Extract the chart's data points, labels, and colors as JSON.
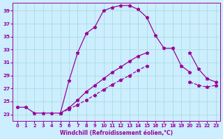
{
  "bg_color": "#cceeff",
  "grid_color": "#aadddd",
  "line_color": "#990099",
  "xlabel": "Windchill (Refroidissement éolien,°C)",
  "xlim": [
    -0.5,
    23.5
  ],
  "ylim": [
    22.0,
    40.2
  ],
  "xticks": [
    0,
    1,
    2,
    3,
    4,
    5,
    6,
    7,
    8,
    9,
    10,
    11,
    12,
    13,
    14,
    15,
    16,
    17,
    18,
    19,
    20,
    21,
    22,
    23
  ],
  "yticks": [
    23,
    25,
    27,
    29,
    31,
    33,
    35,
    37,
    39
  ],
  "curve1_x": [
    0,
    1,
    2,
    3,
    4,
    5,
    6,
    7,
    8,
    9,
    10,
    11,
    12,
    13,
    14,
    15,
    16,
    17,
    18,
    19,
    20
  ],
  "curve1_y": [
    24.1,
    24.1,
    23.2,
    23.2,
    23.2,
    23.2,
    28.2,
    32.5,
    35.5,
    36.5,
    39.0,
    39.5,
    39.8,
    39.8,
    39.2,
    38.0,
    35.2,
    33.2,
    33.2,
    30.5,
    29.5
  ],
  "curve2_x": [
    5,
    6,
    7,
    8,
    9,
    10,
    11,
    12,
    13,
    14,
    15,
    20,
    21,
    22,
    23
  ],
  "curve2_y": [
    23.2,
    24.0,
    25.2,
    26.5,
    27.5,
    28.5,
    29.5,
    30.3,
    31.2,
    32.0,
    32.5,
    32.5,
    30.0,
    28.5,
    28.0
  ],
  "curve3_x": [
    5,
    6,
    7,
    8,
    9,
    10,
    11,
    12,
    13,
    14,
    15,
    20,
    21,
    22,
    23
  ],
  "curve3_y": [
    23.2,
    23.8,
    24.5,
    25.2,
    26.0,
    26.8,
    27.6,
    28.3,
    29.0,
    29.8,
    30.5,
    28.0,
    27.5,
    27.2,
    27.5
  ]
}
